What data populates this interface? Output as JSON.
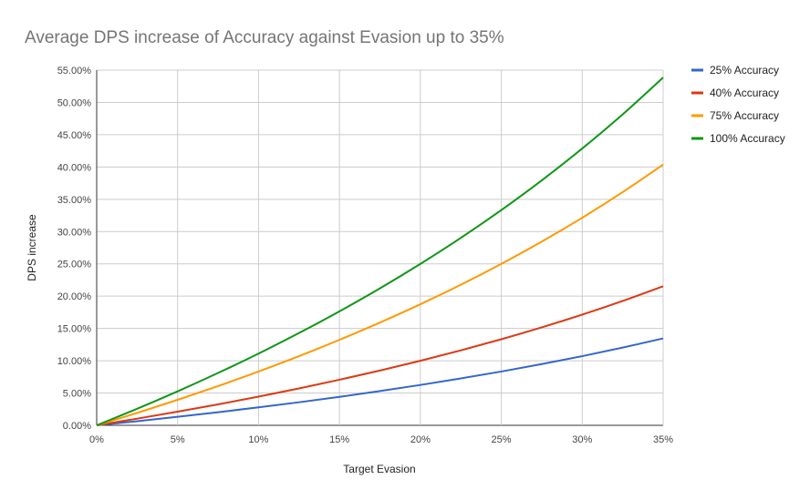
{
  "chart_data": {
    "type": "line",
    "title": "Average DPS increase of Accuracy against Evasion up to 35%",
    "xlabel": "Target Evasion",
    "ylabel": "DPS increase",
    "xlim": [
      0,
      35
    ],
    "ylim": [
      0,
      55
    ],
    "grid": true,
    "legend_position": "right",
    "x_ticks": [
      "0%",
      "5%",
      "10%",
      "15%",
      "20%",
      "25%",
      "30%",
      "35%"
    ],
    "y_ticks": [
      "0.00%",
      "5.00%",
      "10.00%",
      "15.00%",
      "20.00%",
      "25.00%",
      "30.00%",
      "35.00%",
      "40.00%",
      "45.00%",
      "50.00%",
      "55.00%"
    ],
    "x": [
      0,
      2.5,
      5,
      7.5,
      10,
      12.5,
      15,
      17.5,
      20,
      22.5,
      25,
      27.5,
      30,
      32.5,
      35
    ],
    "series": [
      {
        "name": "25% Accuracy",
        "color": "#3366cc",
        "values": [
          0,
          0.64,
          1.32,
          2.03,
          2.78,
          3.57,
          4.41,
          5.3,
          6.25,
          7.26,
          8.33,
          9.48,
          10.71,
          12.04,
          13.46
        ]
      },
      {
        "name": "40% Accuracy",
        "color": "#dc3912",
        "values": [
          0,
          1.03,
          2.11,
          3.24,
          4.44,
          5.71,
          7.06,
          8.48,
          10.0,
          11.61,
          13.33,
          15.17,
          17.14,
          19.26,
          21.54
        ]
      },
      {
        "name": "75% Accuracy",
        "color": "#ff9900",
        "values": [
          0,
          1.92,
          3.95,
          6.08,
          8.33,
          10.71,
          13.24,
          15.91,
          18.75,
          21.77,
          25.0,
          28.45,
          32.14,
          36.11,
          40.38
        ]
      },
      {
        "name": "100% Accuracy",
        "color": "#109618",
        "values": [
          0,
          2.56,
          5.26,
          8.11,
          11.11,
          14.29,
          17.65,
          21.21,
          25.0,
          29.03,
          33.33,
          37.93,
          42.86,
          48.15,
          53.85
        ]
      }
    ]
  }
}
